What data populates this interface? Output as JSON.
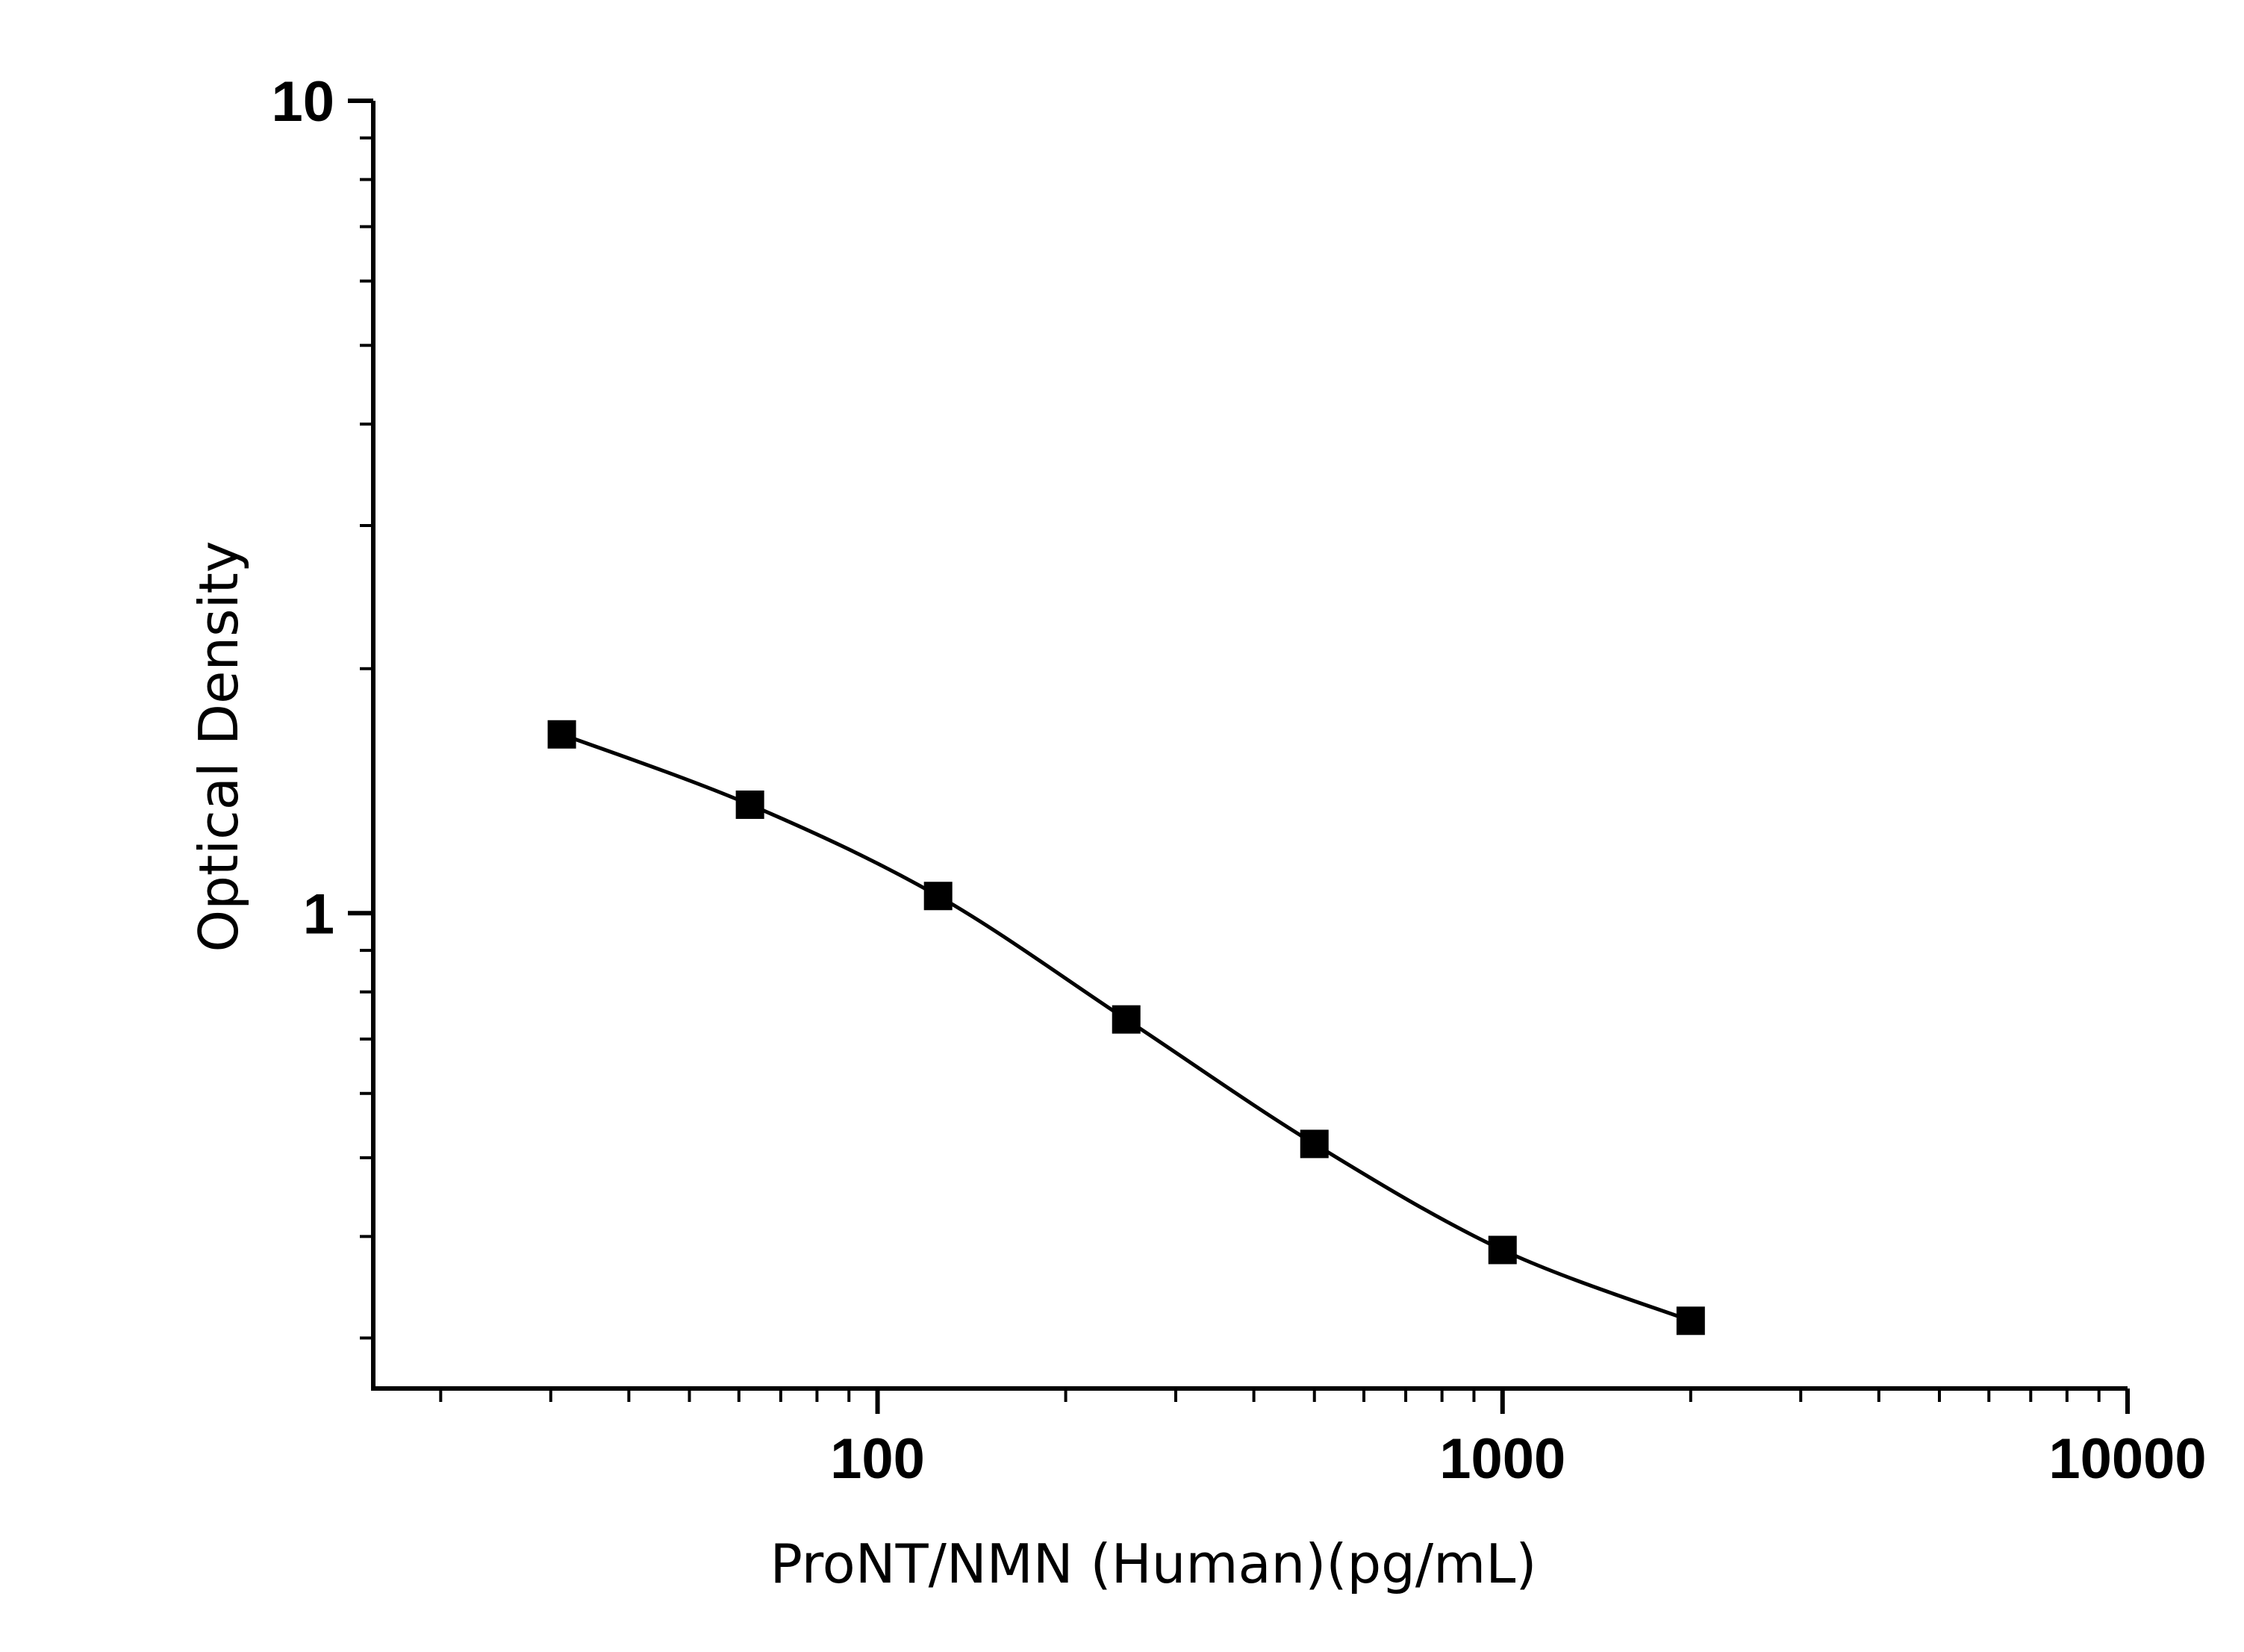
{
  "chart_data": {
    "type": "scatter",
    "title": "",
    "xlabel": "ProNT/NMN (Human)(pg/mL)",
    "ylabel": "Optical Density",
    "x_scale": "log",
    "y_scale": "log",
    "xlim": [
      15.6,
      10000
    ],
    "ylim": [
      0.26,
      10
    ],
    "x_ticks": [
      "100",
      "1000",
      "10000"
    ],
    "y_ticks": [
      "1",
      "10"
    ],
    "grid": false,
    "legend": "none",
    "series": [
      {
        "marker": "square",
        "color": "#000000",
        "fit_line": true,
        "x": [
          31.25,
          62.5,
          125,
          250,
          500,
          1000,
          2000
        ],
        "y": [
          1.66,
          1.36,
          1.05,
          0.74,
          0.52,
          0.385,
          0.315
        ]
      }
    ]
  }
}
